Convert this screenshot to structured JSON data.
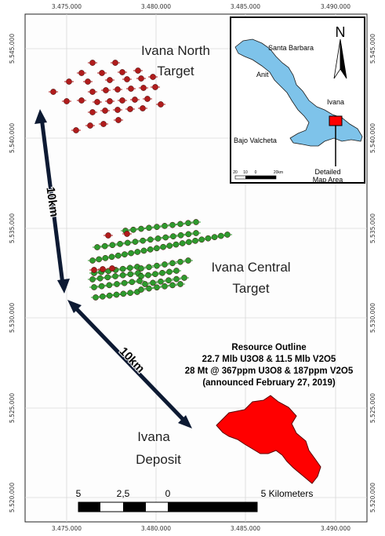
{
  "axes": {
    "x_ticks_top": [
      "3.475.000",
      "3.480.000",
      "3.485.000",
      "3.490.000"
    ],
    "x_ticks_bottom": [
      "3.475.000",
      "3.480.000",
      "3.485.000",
      "3.490.000"
    ],
    "y_ticks_left": [
      "5.545.000",
      "5.540.000",
      "5.535.000",
      "5.530.000",
      "5.525.000",
      "5.520.000"
    ],
    "y_ticks_right": [
      "5.545.000",
      "5.540.000",
      "5.535.000",
      "5.530.000",
      "5.525.000",
      "5.520.000"
    ]
  },
  "targets": {
    "north_line1": "Ivana North",
    "north_line2": "Target",
    "central_line1": "Ivana Central",
    "central_line2": "Target",
    "deposit_line1": "Ivana",
    "deposit_line2": "Deposit"
  },
  "distances": {
    "vertical": "10km",
    "diagonal": "10km"
  },
  "resource": {
    "line1": "Resource Outline",
    "line2": "22.7 Mlb U3O8 & 11.5 Mlb V2O5",
    "line3": "28 Mt @ 367ppm U3O8 & 187ppm V2O5",
    "line4": "(announced February 27, 2019)"
  },
  "inset": {
    "north_label": "N",
    "santa_barbara": "Santa Barbara",
    "anit": "Anit",
    "ivana": "Ivana",
    "bajo_valcheta": "Bajo Valcheta",
    "detail_line1": "Detailed",
    "detail_line2": "Map Area",
    "scale_ticks": [
      "20",
      "10",
      "0",
      "20km"
    ]
  },
  "scalebar": {
    "labels": [
      "5",
      "2,5",
      "0",
      "5 Kilometers"
    ]
  },
  "colors": {
    "drill_red": "#b01c1c",
    "drill_green": "#2e9a2e",
    "deposit_red": "#ff0000",
    "inset_fill": "#7ec3ea",
    "arrow": "#0d1a33"
  }
}
